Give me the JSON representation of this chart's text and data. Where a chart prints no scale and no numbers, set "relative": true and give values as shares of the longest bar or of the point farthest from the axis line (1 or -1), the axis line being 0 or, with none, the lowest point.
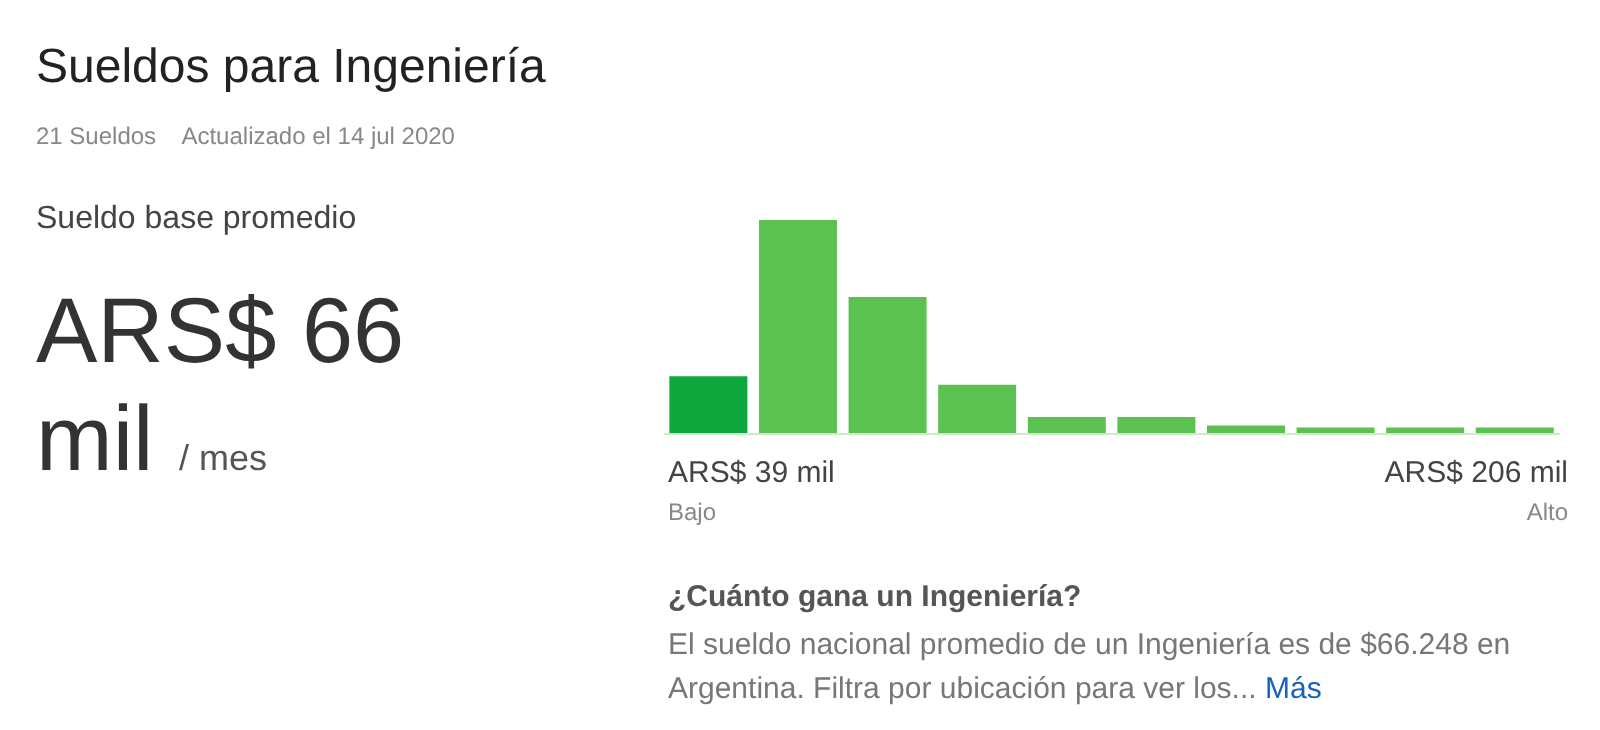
{
  "chart_data": {
    "type": "bar",
    "title": "Sueldos para Ingeniería",
    "subtitle": "21 Sueldos    Actualizado el 14 jul 2020",
    "relative": true,
    "categories": [
      null,
      null,
      null,
      null,
      null,
      null,
      null,
      null,
      null,
      null
    ],
    "values": [
      0.27,
      1,
      0.64,
      0.23,
      0.08,
      0.08,
      0.04,
      0.03,
      0.03,
      0.03
    ],
    "colors": [
      "#0ea83f",
      "#5bc150",
      "#5bc150",
      "#5bc150",
      "#5bc150",
      "#5bc150",
      "#5bc150",
      "#5bc150",
      "#5bc150",
      "#5bc150"
    ],
    "annotations": [
      "Sueldo base promedio",
      "ARS$ 66 mil",
      "/ mes",
      "ARS$ 39 mil",
      "Bajo",
      "ARS$ 206 mil",
      "Alto",
      "¿Cuánto gana un Ingeniería?",
      "El sueldo nacional promedio de un Ingeniería es de $66.248 en Argentina. Filtra por ubicación para ver los...",
      "Más"
    ]
  }
}
